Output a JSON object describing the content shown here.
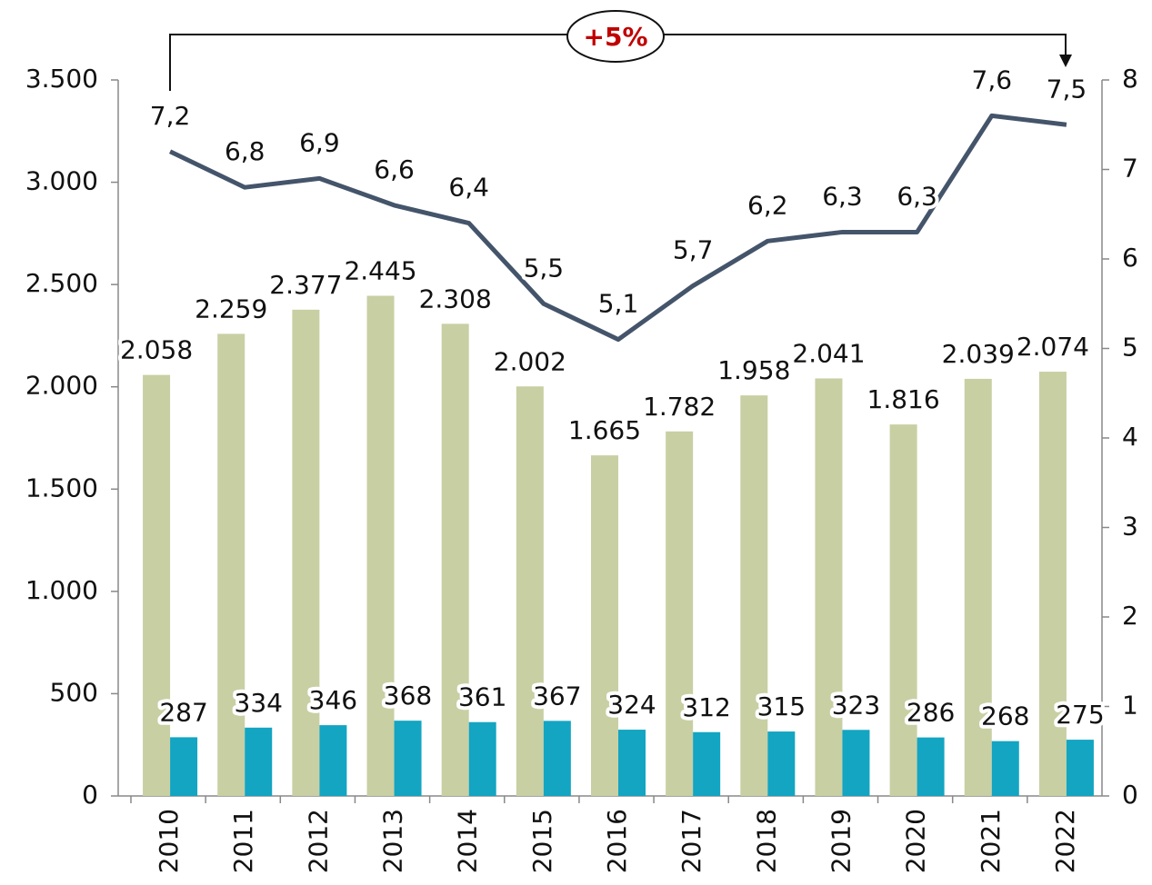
{
  "chart_data": {
    "type": "bar-line",
    "annotation": "+5%",
    "categories": [
      "2010",
      "2011",
      "2012",
      "2013",
      "2014",
      "2015",
      "2016",
      "2017",
      "2018",
      "2019",
      "2020",
      "2021",
      "2022"
    ],
    "series": [
      {
        "type": "bar",
        "color": "#c8cfa3",
        "values": [
          2058,
          2259,
          2377,
          2445,
          2308,
          2002,
          1665,
          1782,
          1958,
          2041,
          1816,
          2039,
          2074
        ],
        "value_labels": [
          "2.058",
          "2.259",
          "2.377",
          "2.445",
          "2.308",
          "2.002",
          "1.665",
          "1.782",
          "1.958",
          "2.041",
          "1.816",
          "2.039",
          "2.074"
        ]
      },
      {
        "type": "bar",
        "color": "#13a5c2",
        "values": [
          287,
          334,
          346,
          368,
          361,
          367,
          324,
          312,
          315,
          323,
          286,
          268,
          275
        ]
      },
      {
        "type": "line",
        "axis": "y2",
        "color": "#44546a",
        "values": [
          7.2,
          6.8,
          6.9,
          6.6,
          6.4,
          5.5,
          5.1,
          5.7,
          6.2,
          6.3,
          6.3,
          7.6,
          7.5
        ],
        "value_labels": [
          "7,2",
          "6,8",
          "6,9",
          "6,6",
          "6,4",
          "5,5",
          "5,1",
          "5,7",
          "6,2",
          "6,3",
          "6,3",
          "7,6",
          "7,5"
        ]
      }
    ],
    "ylim": [
      0,
      3500
    ],
    "yticks": [
      0,
      500,
      {
        "value": 1000,
        "label": "1.000"
      },
      {
        "value": 1500,
        "label": "1.500"
      },
      {
        "value": 2000,
        "label": "2.000"
      },
      {
        "value": 2500,
        "label": "2.500"
      },
      {
        "value": 3000,
        "label": "3.000"
      },
      {
        "value": 3500,
        "label": "3.500"
      }
    ],
    "y2lim": [
      0,
      8
    ],
    "y2ticks": [
      0,
      1,
      2,
      3,
      4,
      5,
      6,
      7,
      8
    ]
  }
}
